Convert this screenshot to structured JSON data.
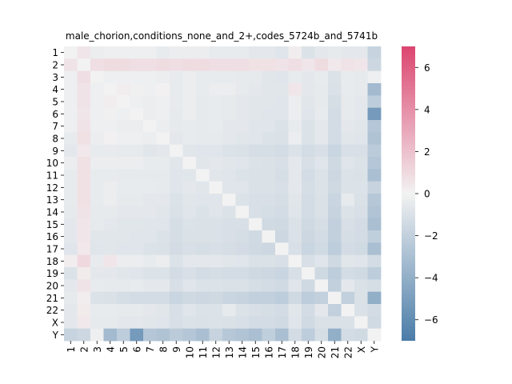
{
  "chart_data": {
    "type": "heatmap",
    "title": "male_chorion,conditions_none_and_2+,codes_5724b_and_5741b",
    "labels": [
      "1",
      "2",
      "3",
      "4",
      "5",
      "6",
      "7",
      "8",
      "9",
      "10",
      "11",
      "12",
      "13",
      "14",
      "15",
      "16",
      "17",
      "18",
      "19",
      "20",
      "21",
      "22",
      "X",
      "Y"
    ],
    "colorbar": {
      "min": -7,
      "max": 7,
      "ticks": [
        -6,
        -4,
        -2,
        0,
        2,
        4,
        6
      ]
    },
    "colors": {
      "negative": "#4a7ca8",
      "center": "#f2f2f2",
      "positive": "#dc456f"
    },
    "values": [
      [
        0,
        0.5,
        -0.3,
        -0.2,
        -0.2,
        -0.2,
        -0.2,
        -0.4,
        -0.3,
        -0.3,
        -0.3,
        -0.4,
        -0.4,
        -0.4,
        -0.6,
        -0.6,
        -0.8,
        0.2,
        -0.9,
        -0.6,
        -0.5,
        -0.6,
        -0.6,
        -1.8
      ],
      [
        0.6,
        0,
        0.8,
        0.9,
        0.9,
        0.8,
        0.8,
        0.9,
        0.8,
        0.9,
        0.9,
        0.8,
        0.8,
        0.8,
        0.7,
        0.7,
        0.6,
        0.8,
        0.5,
        0.9,
        0.4,
        0.6,
        0.5,
        -1.6
      ],
      [
        -0.2,
        0.8,
        0,
        -0.2,
        -0.2,
        -0.2,
        -0.2,
        -0.3,
        -0.4,
        -0.3,
        -0.4,
        -0.4,
        -0.4,
        -0.5,
        -0.5,
        -0.7,
        -0.8,
        -0.4,
        -0.6,
        -0.4,
        -0.9,
        -0.4,
        -0.5,
        -0.2
      ],
      [
        -0.2,
        0.6,
        -0.2,
        0,
        0.2,
        -0.1,
        -0.2,
        0.1,
        -0.4,
        -0.3,
        -0.4,
        -0.3,
        -0.3,
        -0.5,
        -0.6,
        -0.7,
        -0.7,
        0.5,
        -0.6,
        -0.5,
        -1.0,
        -0.4,
        -0.5,
        -3.3
      ],
      [
        -0.2,
        0.6,
        -0.2,
        0.2,
        0,
        -0.2,
        -0.3,
        -0.2,
        -0.4,
        -0.3,
        -0.5,
        -0.4,
        -0.5,
        -0.6,
        -0.7,
        -0.7,
        -0.8,
        -0.3,
        -0.7,
        -0.5,
        -1.2,
        -0.5,
        -0.6,
        -2.2
      ],
      [
        -0.2,
        0.5,
        -0.2,
        -0.1,
        -0.2,
        0,
        -0.3,
        -0.2,
        -0.5,
        -0.3,
        -0.5,
        -0.4,
        -0.5,
        -0.6,
        -0.7,
        -0.8,
        -0.8,
        -0.3,
        -0.8,
        -0.4,
        -1.3,
        -0.5,
        -0.6,
        -5.2
      ],
      [
        -0.2,
        0.6,
        -0.2,
        -0.2,
        -0.3,
        -0.3,
        0,
        -0.3,
        -0.5,
        -0.4,
        -0.5,
        -0.4,
        -0.6,
        -0.6,
        -0.8,
        -0.8,
        -0.9,
        -0.4,
        -0.9,
        -0.6,
        -1.3,
        -0.6,
        -0.7,
        -2.6
      ],
      [
        -0.4,
        0.7,
        -0.3,
        0.1,
        -0.2,
        -0.2,
        -0.3,
        0,
        -0.6,
        -0.4,
        -0.5,
        -0.5,
        -0.6,
        -0.7,
        -0.8,
        -0.9,
        -1.0,
        -0.3,
        -0.9,
        -0.6,
        -1.3,
        -0.7,
        -0.8,
        -2.8
      ],
      [
        -0.6,
        0.4,
        -0.4,
        -0.4,
        -0.5,
        -0.5,
        -0.7,
        -0.6,
        0,
        -0.7,
        -0.8,
        -0.8,
        -0.9,
        -1.0,
        -1.2,
        -1.2,
        -1.3,
        -0.9,
        -1.3,
        -1.1,
        -1.7,
        -1.1,
        -1.1,
        -2.3
      ],
      [
        -0.3,
        0.7,
        -0.3,
        -0.3,
        -0.3,
        -0.3,
        -0.4,
        -0.4,
        -0.7,
        0,
        -0.7,
        -0.6,
        -0.7,
        -0.8,
        -0.9,
        -1.0,
        -1.1,
        -0.6,
        -1.1,
        -0.8,
        -1.5,
        -0.8,
        -0.9,
        -2.6
      ],
      [
        -0.4,
        0.7,
        -0.4,
        -0.4,
        -0.5,
        -0.5,
        -0.5,
        -0.5,
        -0.8,
        -0.7,
        0,
        -0.7,
        -0.8,
        -0.9,
        -1.0,
        -1.0,
        -1.2,
        -0.6,
        -1.3,
        -0.9,
        -1.6,
        -0.9,
        -1.0,
        -3.0
      ],
      [
        -0.4,
        0.7,
        -0.4,
        -0.3,
        -0.4,
        -0.4,
        -0.4,
        -0.5,
        -0.8,
        -0.6,
        -0.7,
        0,
        -0.8,
        -0.8,
        -1.0,
        -1.0,
        -1.1,
        -0.6,
        -1.2,
        -0.9,
        -1.5,
        -0.9,
        -0.9,
        -1.8
      ],
      [
        -0.4,
        0.7,
        -0.4,
        -0.3,
        -0.5,
        -0.5,
        -0.6,
        -0.6,
        -0.9,
        -0.7,
        -0.8,
        -0.8,
        0,
        -0.9,
        -1.1,
        -1.1,
        -1.2,
        -0.7,
        -1.3,
        -1.0,
        -1.7,
        -0.5,
        -1.0,
        -2.5
      ],
      [
        -0.5,
        0.6,
        -0.5,
        -0.5,
        -0.6,
        -0.6,
        -0.6,
        -0.7,
        -1.0,
        -0.8,
        -0.9,
        -0.8,
        -0.9,
        0,
        -1.1,
        -1.2,
        -1.3,
        -0.8,
        -1.3,
        -1.0,
        -1.8,
        -0.9,
        -1.1,
        -2.7
      ],
      [
        -0.6,
        0.5,
        -0.5,
        -0.6,
        -0.7,
        -0.7,
        -0.8,
        -0.8,
        -1.2,
        -0.9,
        -1.0,
        -1.0,
        -1.1,
        -1.1,
        0,
        -1.4,
        -1.5,
        -1.0,
        -1.5,
        -1.2,
        -2.0,
        -1.1,
        -1.3,
        -3.0
      ],
      [
        -0.6,
        0.5,
        -0.7,
        -0.7,
        -0.7,
        -0.8,
        -0.8,
        -0.9,
        -1.2,
        -1.0,
        -1.0,
        -1.0,
        -1.1,
        -1.2,
        -1.4,
        0,
        -1.6,
        -1.0,
        -1.6,
        -1.3,
        -2.0,
        -1.2,
        -1.3,
        -2.1
      ],
      [
        -0.8,
        0.4,
        -0.8,
        -0.7,
        -0.8,
        -0.8,
        -0.9,
        -1.0,
        -1.3,
        -1.1,
        -1.2,
        -1.1,
        -1.2,
        -1.3,
        -1.5,
        -1.6,
        0,
        -1.1,
        -1.7,
        -1.4,
        -2.2,
        -1.3,
        -1.4,
        -3.0
      ],
      [
        0.2,
        1.0,
        -0.4,
        0.5,
        -0.3,
        -0.3,
        -0.4,
        -0.3,
        -0.9,
        -0.6,
        -0.6,
        -0.6,
        -0.7,
        -0.8,
        -1.0,
        -1.0,
        -1.1,
        0,
        -1.1,
        -0.8,
        -1.5,
        -0.7,
        -0.8,
        -1.3
      ],
      [
        -0.9,
        0.3,
        -0.6,
        -0.6,
        -0.7,
        -0.8,
        -0.9,
        -0.9,
        -1.3,
        -1.1,
        -1.3,
        -1.2,
        -1.3,
        -1.3,
        -1.5,
        -1.6,
        -1.7,
        -1.1,
        0,
        -1.5,
        -2.2,
        -1.3,
        -1.4,
        -2.2
      ],
      [
        -0.6,
        0.6,
        -0.4,
        -0.5,
        -0.5,
        -0.4,
        -0.6,
        -0.6,
        -1.1,
        -0.8,
        -0.9,
        -0.9,
        -1.0,
        -1.0,
        -1.2,
        -1.3,
        -1.4,
        -0.8,
        -1.5,
        0,
        -2.0,
        -0.6,
        -1.0,
        -1.2
      ],
      [
        -0.5,
        0.2,
        -0.9,
        -1.0,
        -1.2,
        -1.3,
        -1.3,
        -1.3,
        -1.7,
        -1.5,
        -1.6,
        -1.5,
        -1.7,
        -1.8,
        -2.0,
        -2.0,
        -2.2,
        -1.5,
        -2.2,
        -2.0,
        0,
        -2.0,
        -1.0,
        -4.0
      ],
      [
        -0.6,
        0.3,
        -0.4,
        -0.4,
        -0.5,
        -0.5,
        -0.6,
        -0.7,
        -1.1,
        -0.8,
        -0.9,
        -0.9,
        -0.5,
        -0.9,
        -1.1,
        -1.2,
        -1.3,
        -0.7,
        -1.3,
        -0.6,
        -2.0,
        0,
        -1.0,
        -1.3
      ],
      [
        -0.6,
        0.4,
        -0.5,
        -0.5,
        -0.6,
        -0.6,
        -0.7,
        -0.8,
        -1.1,
        -0.9,
        -1.0,
        -0.9,
        -1.0,
        -1.1,
        -1.3,
        -1.3,
        -1.4,
        -0.8,
        -1.4,
        -1.0,
        -1.0,
        -1.0,
        0,
        -1.4
      ],
      [
        -1.8,
        -1.6,
        -0.2,
        -3.3,
        -2.2,
        -5.2,
        -2.6,
        -2.8,
        -2.3,
        -2.6,
        -3.0,
        -1.8,
        -2.5,
        -2.7,
        -3.0,
        -2.1,
        -3.0,
        -1.3,
        -2.2,
        -1.2,
        -4.0,
        -1.3,
        -1.4,
        0
      ]
    ]
  }
}
